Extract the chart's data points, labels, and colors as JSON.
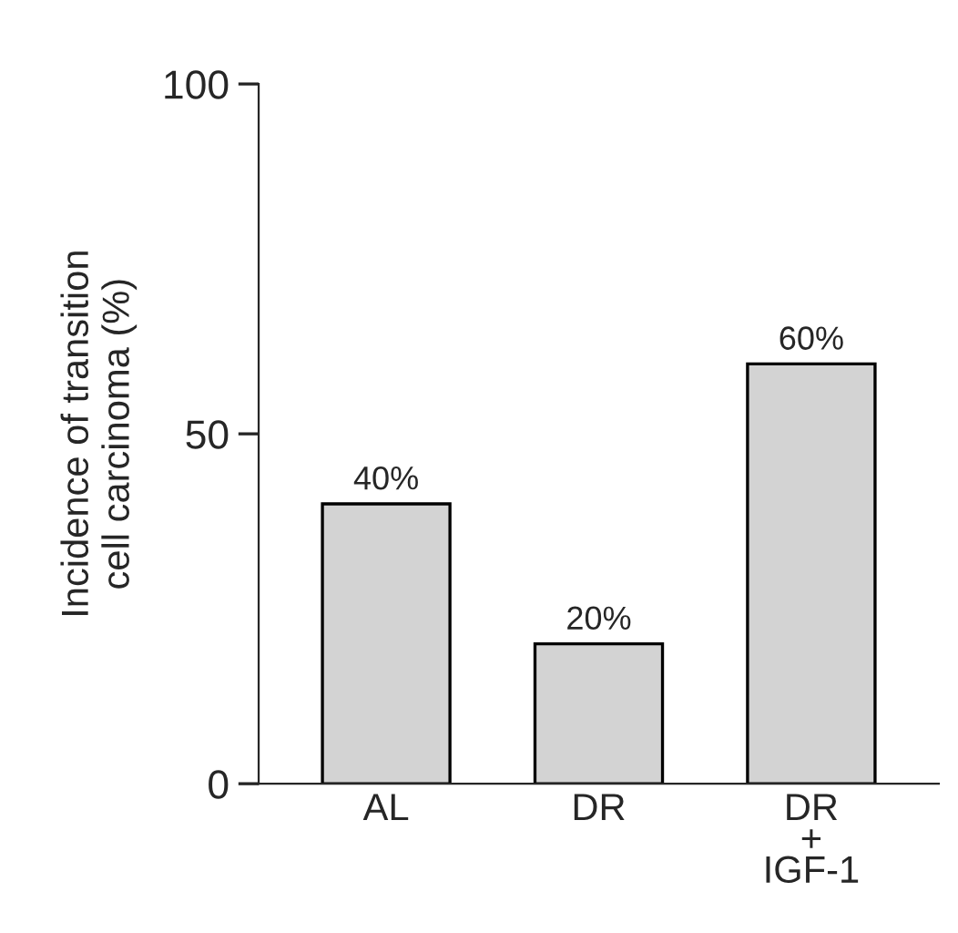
{
  "chart_data": {
    "type": "bar",
    "ylabel": "Incidence of transition\ncell carcinoma (%)",
    "categories": [
      "AL",
      "DR",
      "DR\n+\nIGF-1"
    ],
    "values": [
      40,
      20,
      60
    ],
    "color": "#d3d3d3",
    "value_labels": [
      "40%",
      "20%",
      "60%"
    ],
    "ylim": [
      0,
      100
    ],
    "yticks": [
      0,
      50,
      100
    ],
    "grid": false,
    "legend": false
  }
}
